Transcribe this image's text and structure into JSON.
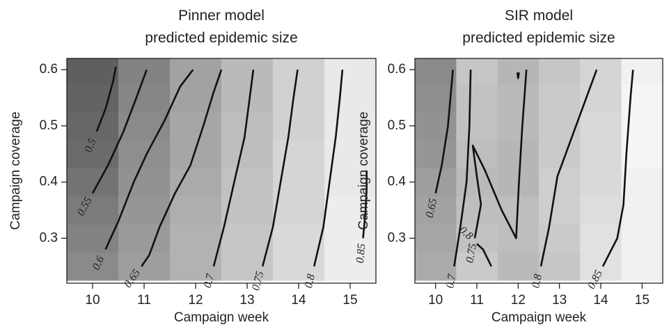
{
  "chart_data": [
    {
      "type": "heatmap",
      "title": "Pinner model",
      "subtitle": "predicted epidemic size",
      "xlabel": "Campaign week",
      "ylabel": "Campaign coverage",
      "xticks": [
        "10",
        "11",
        "12",
        "13",
        "14",
        "15"
      ],
      "yticks": [
        "0.3",
        "0.4",
        "0.5",
        "0.6"
      ],
      "xlim": [
        9.5,
        15.5
      ],
      "ylim": [
        0.22,
        0.62
      ],
      "x": [
        10,
        11,
        12,
        13,
        14,
        15
      ],
      "y": [
        0.25,
        0.3,
        0.35,
        0.4,
        0.45,
        0.5,
        0.55,
        0.6
      ],
      "z": [
        [
          0.61,
          0.66,
          0.71,
          0.76,
          0.81,
          0.86
        ],
        [
          0.59,
          0.65,
          0.71,
          0.76,
          0.81,
          0.86
        ],
        [
          0.57,
          0.64,
          0.7,
          0.75,
          0.8,
          0.86
        ],
        [
          0.55,
          0.63,
          0.69,
          0.75,
          0.8,
          0.85
        ],
        [
          0.53,
          0.62,
          0.68,
          0.74,
          0.8,
          0.85
        ],
        [
          0.52,
          0.61,
          0.68,
          0.74,
          0.79,
          0.85
        ],
        [
          0.51,
          0.6,
          0.67,
          0.73,
          0.79,
          0.85
        ],
        [
          0.5,
          0.59,
          0.67,
          0.73,
          0.79,
          0.85
        ]
      ],
      "contours": [
        {
          "label": "0.5",
          "points": [
            [
              10.08,
              0.49
            ],
            [
              10.25,
              0.53
            ],
            [
              10.4,
              0.58
            ],
            [
              10.45,
              0.605
            ]
          ]
        },
        {
          "label": "0.55",
          "points": [
            [
              10.0,
              0.38
            ],
            [
              10.3,
              0.43
            ],
            [
              10.6,
              0.49
            ],
            [
              10.85,
              0.55
            ],
            [
              11.05,
              0.6
            ]
          ]
        },
        {
          "label": "0.6",
          "points": [
            [
              10.25,
              0.28
            ],
            [
              10.5,
              0.33
            ],
            [
              10.8,
              0.4
            ],
            [
              11.05,
              0.45
            ],
            [
              11.4,
              0.51
            ],
            [
              11.7,
              0.57
            ],
            [
              11.95,
              0.6
            ]
          ]
        },
        {
          "label": "0.65",
          "points": [
            [
              10.95,
              0.25
            ],
            [
              11.1,
              0.27
            ],
            [
              11.3,
              0.32
            ],
            [
              11.6,
              0.38
            ],
            [
              11.9,
              0.43
            ],
            [
              12.15,
              0.5
            ],
            [
              12.35,
              0.56
            ],
            [
              12.5,
              0.6
            ]
          ]
        },
        {
          "label": "0.7",
          "points": [
            [
              12.35,
              0.25
            ],
            [
              12.55,
              0.32
            ],
            [
              12.75,
              0.4
            ],
            [
              12.95,
              0.48
            ],
            [
              13.05,
              0.55
            ],
            [
              13.12,
              0.6
            ]
          ]
        },
        {
          "label": "0.75",
          "points": [
            [
              13.3,
              0.25
            ],
            [
              13.5,
              0.32
            ],
            [
              13.65,
              0.4
            ],
            [
              13.8,
              0.48
            ],
            [
              13.9,
              0.55
            ],
            [
              13.98,
              0.6
            ]
          ]
        },
        {
          "label": "0.8",
          "points": [
            [
              14.3,
              0.25
            ],
            [
              14.48,
              0.32
            ],
            [
              14.6,
              0.4
            ],
            [
              14.72,
              0.48
            ],
            [
              14.8,
              0.55
            ],
            [
              14.85,
              0.6
            ]
          ]
        },
        {
          "label": "0.85",
          "points": [
            [
              15.25,
              0.3
            ],
            [
              15.3,
              0.35
            ],
            [
              15.32,
              0.39
            ],
            [
              15.32,
              0.42
            ]
          ]
        }
      ]
    },
    {
      "type": "heatmap",
      "title": "SIR model",
      "subtitle": "predicted epidemic size",
      "xlabel": "Campaign week",
      "ylabel": "Campaign coverage",
      "xticks": [
        "10",
        "11",
        "12",
        "13",
        "14",
        "15"
      ],
      "yticks": [
        "0.3",
        "0.4",
        "0.5",
        "0.6"
      ],
      "xlim": [
        9.5,
        15.5
      ],
      "ylim": [
        0.22,
        0.62
      ],
      "x": [
        10,
        11,
        12,
        13,
        14,
        15
      ],
      "y": [
        0.25,
        0.3,
        0.35,
        0.4,
        0.45,
        0.5,
        0.55,
        0.6
      ],
      "z": [
        [
          0.69,
          0.77,
          0.73,
          0.76,
          0.83,
          0.87
        ],
        [
          0.68,
          0.75,
          0.74,
          0.77,
          0.83,
          0.87
        ],
        [
          0.67,
          0.74,
          0.74,
          0.78,
          0.82,
          0.87
        ],
        [
          0.66,
          0.73,
          0.72,
          0.78,
          0.81,
          0.87
        ],
        [
          0.64,
          0.74,
          0.72,
          0.77,
          0.81,
          0.88
        ],
        [
          0.63,
          0.75,
          0.73,
          0.77,
          0.81,
          0.88
        ],
        [
          0.62,
          0.75,
          0.73,
          0.77,
          0.8,
          0.88
        ],
        [
          0.61,
          0.76,
          0.72,
          0.76,
          0.8,
          0.87
        ]
      ],
      "contours": [
        {
          "label": "0.65",
          "points": [
            [
              10.0,
              0.38
            ],
            [
              10.15,
              0.43
            ],
            [
              10.3,
              0.5
            ],
            [
              10.42,
              0.6
            ]
          ]
        },
        {
          "label": "0.7",
          "points": [
            [
              10.45,
              0.25
            ],
            [
              10.6,
              0.32
            ],
            [
              10.75,
              0.4
            ],
            [
              10.82,
              0.5
            ],
            [
              10.85,
              0.6
            ]
          ]
        },
        {
          "label": "0.75",
          "points": [
            [
              10.95,
              0.3
            ],
            [
              11.1,
              0.36
            ],
            [
              11.0,
              0.41
            ],
            [
              10.9,
              0.465
            ],
            [
              11.2,
              0.42
            ],
            [
              11.6,
              0.35
            ],
            [
              11.95,
              0.3
            ],
            [
              12.02,
              0.4
            ],
            [
              12.1,
              0.5
            ],
            [
              12.2,
              0.6
            ]
          ]
        },
        {
          "label": "0.8",
          "points": [
            [
              11.0,
              0.29
            ],
            [
              11.15,
              0.28
            ],
            [
              11.35,
              0.25
            ]
          ]
        },
        {
          "label": "",
          "points": [
            [
              11.98,
              0.595
            ],
            [
              12.0,
              0.585
            ],
            [
              12.02,
              0.595
            ]
          ]
        },
        {
          "label": "0.8",
          "points": [
            [
              12.55,
              0.25
            ],
            [
              12.75,
              0.32
            ],
            [
              12.95,
              0.41
            ],
            [
              13.15,
              0.45
            ],
            [
              13.4,
              0.5
            ],
            [
              13.7,
              0.56
            ],
            [
              13.9,
              0.6
            ]
          ]
        },
        {
          "label": "0.85",
          "points": [
            [
              14.05,
              0.25
            ],
            [
              14.4,
              0.3
            ],
            [
              14.55,
              0.36
            ],
            [
              14.62,
              0.45
            ],
            [
              14.72,
              0.55
            ],
            [
              14.78,
              0.6
            ]
          ]
        }
      ]
    }
  ]
}
